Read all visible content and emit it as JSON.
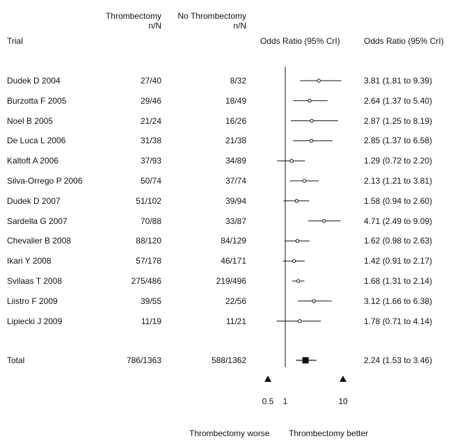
{
  "headers": {
    "trial": "Trial",
    "thrombectomy_line1": "Thrombectomy",
    "thrombectomy_line2": "n/N",
    "no_thrombectomy_line1": "No Thrombectomy",
    "no_thrombectomy_line2": "n/N",
    "odds_ratio_plot": "Odds Ratio (95% CrI)",
    "odds_ratio_text": "Odds Ratio (95% CrI)"
  },
  "footer": {
    "worse_label": "Thrombectomy worse",
    "better_label": "Thrombectomy better"
  },
  "chart_data": {
    "type": "forest",
    "scale": "log",
    "x_ticks": [
      0.5,
      1,
      10
    ],
    "x_tick_labels": [
      "0.5",
      "1",
      "10"
    ],
    "reference_line": 1,
    "trials": [
      {
        "name": "Dudek D 2004",
        "thrombectomy": "27/40",
        "no_thrombectomy": "8/32",
        "or": 3.81,
        "lo": 1.81,
        "hi": 9.39,
        "label": "3.81 (1.81 to 9.39)"
      },
      {
        "name": "Burzotta F 2005",
        "thrombectomy": "29/46",
        "no_thrombectomy": "18/49",
        "or": 2.64,
        "lo": 1.37,
        "hi": 5.4,
        "label": "2.64 (1.37 to 5.40)"
      },
      {
        "name": "Noel B 2005",
        "thrombectomy": "21/24",
        "no_thrombectomy": "16/26",
        "or": 2.87,
        "lo": 1.25,
        "hi": 8.19,
        "label": "2.87 (1.25 to 8.19)"
      },
      {
        "name": "De Luca L 2006",
        "thrombectomy": "31/38",
        "no_thrombectomy": "21/38",
        "or": 2.85,
        "lo": 1.37,
        "hi": 6.58,
        "label": "2.85 (1.37 to 6.58)"
      },
      {
        "name": "Kaltoft A 2006",
        "thrombectomy": "37/93",
        "no_thrombectomy": "34/89",
        "or": 1.29,
        "lo": 0.72,
        "hi": 2.2,
        "label": "1.29 (0.72 to 2.20)"
      },
      {
        "name": "Silva-Orrego P 2006",
        "thrombectomy": "50/74",
        "no_thrombectomy": "37/74",
        "or": 2.13,
        "lo": 1.21,
        "hi": 3.81,
        "label": "2.13 (1.21 to 3.81)"
      },
      {
        "name": "Dudek D 2007",
        "thrombectomy": "51/102",
        "no_thrombectomy": "39/94",
        "or": 1.58,
        "lo": 0.94,
        "hi": 2.6,
        "label": "1.58 (0.94 to 2.60)"
      },
      {
        "name": "Sardella G 2007",
        "thrombectomy": "70/88",
        "no_thrombectomy": "33/87",
        "or": 4.71,
        "lo": 2.49,
        "hi": 9.09,
        "label": "4.71 (2.49 to 9.09)"
      },
      {
        "name": "Chevalier B 2008",
        "thrombectomy": "88/120",
        "no_thrombectomy": "84/129",
        "or": 1.62,
        "lo": 0.98,
        "hi": 2.63,
        "label": "1.62 (0.98 to 2.63)"
      },
      {
        "name": "Ikari Y 2008",
        "thrombectomy": "57/178",
        "no_thrombectomy": "46/171",
        "or": 1.42,
        "lo": 0.91,
        "hi": 2.17,
        "label": "1.42 (0.91 to 2.17)"
      },
      {
        "name": "Svilaas T 2008",
        "thrombectomy": "275/486",
        "no_thrombectomy": "219/496",
        "or": 1.68,
        "lo": 1.31,
        "hi": 2.14,
        "label": "1.68 (1.31 to 2.14)"
      },
      {
        "name": "Liistro F 2009",
        "thrombectomy": "39/55",
        "no_thrombectomy": "22/56",
        "or": 3.12,
        "lo": 1.66,
        "hi": 6.38,
        "label": "3.12 (1.66 to 6.38)"
      },
      {
        "name": "Lipiecki J 2009",
        "thrombectomy": "11/19",
        "no_thrombectomy": "11/21",
        "or": 1.78,
        "lo": 0.71,
        "hi": 4.14,
        "label": "1.78 (0.71 to 4.14)"
      }
    ],
    "total": {
      "name": "Total",
      "thrombectomy": "786/1363",
      "no_thrombectomy": "588/1362",
      "or": 2.24,
      "lo": 1.53,
      "hi": 3.46,
      "label": "2.24 (1.53 to 3.46)"
    }
  }
}
